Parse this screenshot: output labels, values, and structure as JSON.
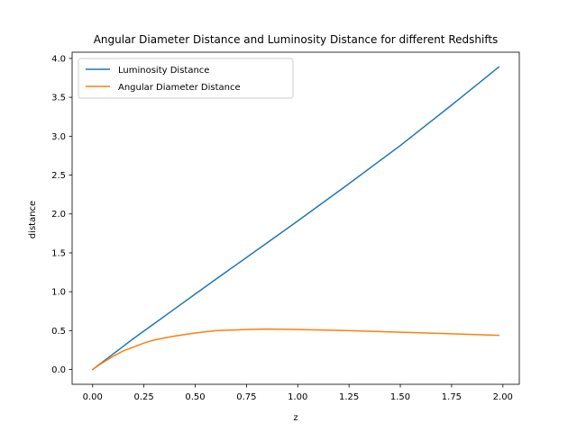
{
  "chart_data": {
    "type": "line",
    "title": "Angular Diameter Distance and Luminosity Distance for different Redshifts",
    "xlabel": "z",
    "ylabel": "distance",
    "xlim": [
      -0.1,
      2.08
    ],
    "ylim": [
      -0.19,
      4.08
    ],
    "xticks": [
      0.0,
      0.25,
      0.5,
      0.75,
      1.0,
      1.25,
      1.5,
      1.75,
      2.0
    ],
    "xtick_labels": [
      "0.00",
      "0.25",
      "0.50",
      "0.75",
      "1.00",
      "1.25",
      "1.50",
      "1.75",
      "2.00"
    ],
    "yticks": [
      0.0,
      0.5,
      1.0,
      1.5,
      2.0,
      2.5,
      3.0,
      3.5,
      4.0
    ],
    "ytick_labels": [
      "0.0",
      "0.5",
      "1.0",
      "1.5",
      "2.0",
      "2.5",
      "3.0",
      "3.5",
      "4.0"
    ],
    "grid": false,
    "legend": "top-left",
    "series": [
      {
        "name": "Luminosity Distance",
        "color": "#1f77b4",
        "x": [
          0.0,
          0.05,
          0.1,
          0.15,
          0.2,
          0.3,
          0.4,
          0.5,
          0.6,
          0.75,
          1.0,
          1.25,
          1.5,
          1.75,
          1.98
        ],
        "values": [
          0.0,
          0.1,
          0.2,
          0.3,
          0.4,
          0.59,
          0.78,
          0.97,
          1.16,
          1.44,
          1.91,
          2.39,
          2.88,
          3.4,
          3.89
        ]
      },
      {
        "name": "Angular Diameter Distance",
        "color": "#ff7f0e",
        "x": [
          0.0,
          0.05,
          0.1,
          0.15,
          0.2,
          0.25,
          0.3,
          0.4,
          0.5,
          0.6,
          0.75,
          0.85,
          1.0,
          1.25,
          1.5,
          1.75,
          1.98
        ],
        "values": [
          0.0,
          0.09,
          0.17,
          0.24,
          0.29,
          0.34,
          0.38,
          0.43,
          0.47,
          0.5,
          0.515,
          0.52,
          0.515,
          0.5,
          0.48,
          0.46,
          0.44
        ]
      }
    ]
  }
}
